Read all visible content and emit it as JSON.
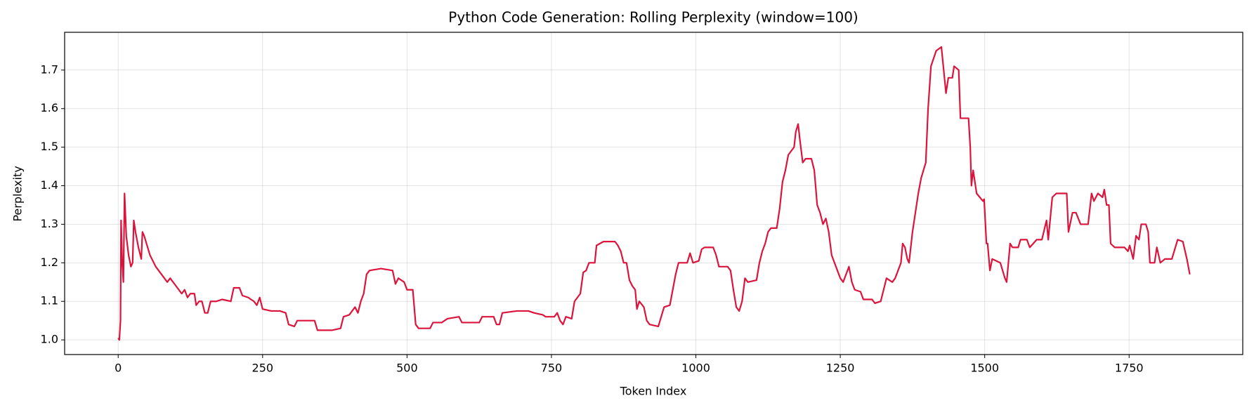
{
  "chart_data": {
    "type": "line",
    "title": "Python Code Generation: Rolling Perplexity (window=100)",
    "xlabel": "Token Index",
    "ylabel": "Perplexity",
    "x": [
      0,
      2,
      4,
      5,
      7,
      9,
      11,
      14,
      18,
      22,
      25,
      27,
      30,
      35,
      40,
      42,
      45,
      55,
      65,
      75,
      85,
      90,
      100,
      105,
      110,
      115,
      120,
      125,
      132,
      135,
      140,
      145,
      150,
      155,
      160,
      170,
      180,
      195,
      200,
      210,
      215,
      225,
      235,
      240,
      245,
      250,
      265,
      280,
      290,
      295,
      305,
      310,
      340,
      345,
      370,
      385,
      390,
      400,
      410,
      415,
      420,
      425,
      430,
      435,
      455,
      475,
      480,
      485,
      495,
      500,
      510,
      515,
      520,
      540,
      545,
      560,
      570,
      590,
      595,
      625,
      630,
      650,
      655,
      660,
      665,
      690,
      710,
      720,
      735,
      740,
      755,
      760,
      765,
      770,
      775,
      785,
      790,
      800,
      805,
      810,
      815,
      825,
      828,
      840,
      860,
      865,
      870,
      875,
      880,
      885,
      890,
      895,
      898,
      902,
      910,
      915,
      920,
      935,
      940,
      945,
      955,
      960,
      965,
      970,
      985,
      990,
      995,
      1005,
      1010,
      1015,
      1030,
      1035,
      1040,
      1055,
      1060,
      1065,
      1070,
      1075,
      1080,
      1085,
      1090,
      1105,
      1110,
      1115,
      1120,
      1125,
      1130,
      1140,
      1145,
      1150,
      1155,
      1160,
      1165,
      1170,
      1173,
      1177,
      1180,
      1185,
      1190,
      1200,
      1205,
      1210,
      1215,
      1220,
      1225,
      1230,
      1235,
      1240,
      1245,
      1250,
      1255,
      1260,
      1265,
      1270,
      1275,
      1285,
      1290,
      1305,
      1310,
      1320,
      1325,
      1330,
      1340,
      1345,
      1350,
      1355,
      1358,
      1362,
      1366,
      1369,
      1375,
      1385,
      1390,
      1398,
      1402,
      1407,
      1416,
      1425,
      1433,
      1437,
      1444,
      1447,
      1455,
      1458,
      1472,
      1475,
      1477,
      1480,
      1486,
      1497,
      1499,
      1503,
      1505,
      1509,
      1513,
      1527,
      1535,
      1538,
      1544,
      1548,
      1558,
      1562,
      1573,
      1578,
      1590,
      1599,
      1607,
      1610,
      1617,
      1624,
      1642,
      1645,
      1652,
      1658,
      1666,
      1679,
      1685,
      1689,
      1696,
      1704,
      1707,
      1711,
      1715,
      1718,
      1725,
      1742,
      1748,
      1751,
      1757,
      1762,
      1767,
      1771,
      1779,
      1783,
      1786,
      1794,
      1798,
      1804,
      1812,
      1824,
      1834,
      1843,
      1850,
      1855
    ],
    "series": [
      {
        "name": "Perplexity",
        "color": "#dc143c",
        "values": [
          1.005,
          1.0,
          1.05,
          1.31,
          1.2,
          1.15,
          1.38,
          1.27,
          1.22,
          1.19,
          1.2,
          1.31,
          1.28,
          1.24,
          1.21,
          1.28,
          1.27,
          1.22,
          1.19,
          1.17,
          1.15,
          1.16,
          1.14,
          1.13,
          1.12,
          1.13,
          1.11,
          1.12,
          1.12,
          1.09,
          1.1,
          1.1,
          1.07,
          1.07,
          1.1,
          1.1,
          1.105,
          1.1,
          1.135,
          1.135,
          1.115,
          1.11,
          1.1,
          1.09,
          1.11,
          1.08,
          1.075,
          1.075,
          1.07,
          1.04,
          1.035,
          1.05,
          1.05,
          1.025,
          1.025,
          1.03,
          1.06,
          1.065,
          1.085,
          1.07,
          1.1,
          1.12,
          1.17,
          1.18,
          1.185,
          1.18,
          1.145,
          1.16,
          1.15,
          1.13,
          1.13,
          1.04,
          1.03,
          1.03,
          1.045,
          1.045,
          1.055,
          1.06,
          1.045,
          1.045,
          1.06,
          1.06,
          1.04,
          1.04,
          1.07,
          1.075,
          1.075,
          1.07,
          1.065,
          1.06,
          1.06,
          1.07,
          1.05,
          1.04,
          1.06,
          1.055,
          1.1,
          1.12,
          1.175,
          1.18,
          1.2,
          1.2,
          1.245,
          1.255,
          1.255,
          1.245,
          1.23,
          1.2,
          1.2,
          1.155,
          1.14,
          1.13,
          1.08,
          1.1,
          1.085,
          1.05,
          1.04,
          1.035,
          1.06,
          1.085,
          1.09,
          1.13,
          1.17,
          1.2,
          1.2,
          1.225,
          1.2,
          1.205,
          1.235,
          1.24,
          1.24,
          1.22,
          1.19,
          1.19,
          1.18,
          1.13,
          1.085,
          1.075,
          1.1,
          1.16,
          1.15,
          1.155,
          1.2,
          1.23,
          1.25,
          1.28,
          1.29,
          1.29,
          1.34,
          1.41,
          1.44,
          1.48,
          1.49,
          1.5,
          1.54,
          1.56,
          1.52,
          1.46,
          1.47,
          1.47,
          1.44,
          1.35,
          1.33,
          1.3,
          1.315,
          1.28,
          1.22,
          1.2,
          1.18,
          1.16,
          1.15,
          1.17,
          1.19,
          1.15,
          1.13,
          1.125,
          1.105,
          1.105,
          1.095,
          1.1,
          1.13,
          1.16,
          1.15,
          1.16,
          1.18,
          1.2,
          1.25,
          1.24,
          1.21,
          1.2,
          1.28,
          1.38,
          1.42,
          1.46,
          1.6,
          1.71,
          1.75,
          1.76,
          1.64,
          1.68,
          1.68,
          1.71,
          1.7,
          1.575,
          1.575,
          1.5,
          1.4,
          1.44,
          1.38,
          1.36,
          1.365,
          1.25,
          1.25,
          1.18,
          1.21,
          1.2,
          1.16,
          1.15,
          1.25,
          1.24,
          1.24,
          1.26,
          1.26,
          1.24,
          1.26,
          1.26,
          1.31,
          1.26,
          1.37,
          1.38,
          1.38,
          1.28,
          1.33,
          1.33,
          1.3,
          1.3,
          1.38,
          1.36,
          1.38,
          1.37,
          1.39,
          1.35,
          1.35,
          1.25,
          1.24,
          1.24,
          1.23,
          1.245,
          1.21,
          1.27,
          1.26,
          1.3,
          1.3,
          1.28,
          1.2,
          1.2,
          1.24,
          1.2,
          1.21,
          1.21,
          1.26,
          1.255,
          1.21,
          1.17
        ]
      }
    ],
    "xlim": [
      -92.7,
      1946.7
    ],
    "ylim": [
      0.962,
      1.798
    ],
    "xticks": [
      0,
      250,
      500,
      750,
      1000,
      1250,
      1500,
      1750
    ],
    "yticks": [
      {
        "value": 1,
        "label": "1.0"
      },
      1.1,
      1.2,
      1.3,
      1.4,
      1.5,
      1.6,
      1.7
    ],
    "grid": true
  }
}
